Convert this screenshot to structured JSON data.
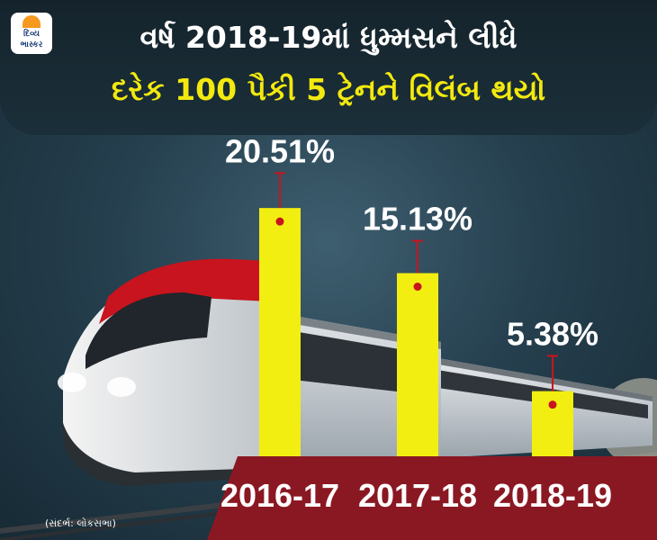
{
  "header": {
    "title_line1": "વર્ષ 2018-19માં ધુમ્મસને લીધે",
    "title_line2": "દરેક 100 પૈકી 5 ટ્રેનને વિલંબ થયો"
  },
  "logo": {
    "line1": "દિવ્ય",
    "line2": "ભાસ્કર"
  },
  "source": "(સંદર્ભ: લોકસભા)",
  "colors": {
    "bar": "#f2ee12",
    "error_bar": "#c8141e",
    "label_band": "#8a1822",
    "title_highlight": "#f2e90f"
  },
  "chart_data": {
    "type": "bar",
    "categories": [
      "2016-17",
      "2017-18",
      "2018-19"
    ],
    "values": [
      20.51,
      15.13,
      5.38
    ],
    "value_labels": [
      "20.51%",
      "15.13%",
      "5.38%"
    ],
    "error_upper": [
      23.4,
      17.8,
      8.3
    ],
    "title": "",
    "xlabel": "",
    "ylabel": "",
    "ylim": [
      0,
      25
    ]
  }
}
